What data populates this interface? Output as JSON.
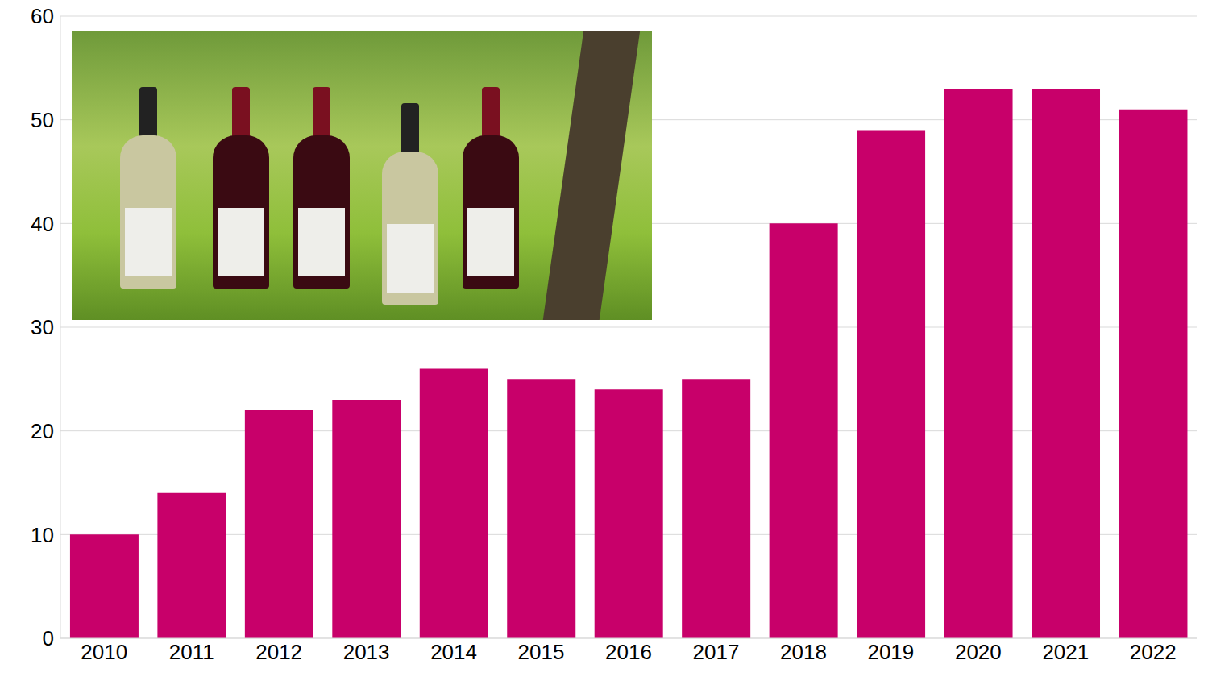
{
  "chart_data": {
    "type": "bar",
    "categories": [
      "2010",
      "2011",
      "2012",
      "2013",
      "2014",
      "2015",
      "2016",
      "2017",
      "2018",
      "2019",
      "2020",
      "2021",
      "2022"
    ],
    "values": [
      10,
      14,
      22,
      23,
      26,
      25,
      24,
      25,
      40,
      49,
      53,
      53,
      51
    ],
    "color": "#c8006a",
    "ylim": [
      0,
      60
    ],
    "yticks": [
      0,
      10,
      20,
      30,
      40,
      50,
      60
    ],
    "grid": true
  }
}
